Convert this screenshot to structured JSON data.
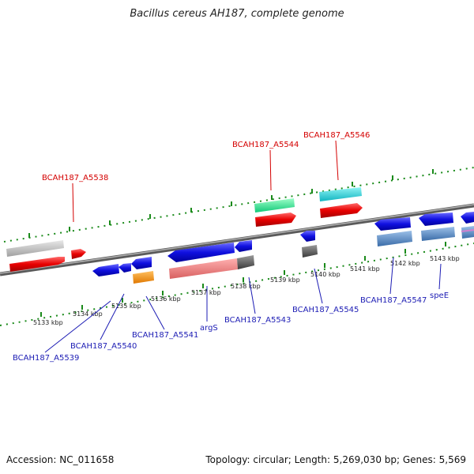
{
  "title": "Bacillus cereus AH187, complete genome",
  "footer": {
    "accession": "Accession: NC_011658",
    "topology": "Topology: circular; Length: 5,269,030 bp; Genes: 5,569"
  },
  "scale": {
    "labels": [
      "5133 kbp",
      "5134 kbp",
      "5135 kbp",
      "5136 kbp",
      "5137 kbp",
      "5138 kbp",
      "5139 kbp",
      "5140 kbp",
      "5141 kbp",
      "5142 kbp",
      "5143 kbp"
    ]
  },
  "top_labels": [
    "BCAH187_A5538",
    "BCAH187_A5544",
    "BCAH187_A5546"
  ],
  "bottom_labels": [
    "BCAH187_A5539",
    "BCAH187_A5540",
    "BCAH187_A5541",
    "argS",
    "BCAH187_A5543",
    "BCAH187_A5545",
    "BCAH187_A5547",
    "speE"
  ],
  "colors": {
    "backbone": "#7a7a7a",
    "tick": "#1a8a1a",
    "label_red": "#d40000",
    "label_blue": "#1c1cb4"
  }
}
